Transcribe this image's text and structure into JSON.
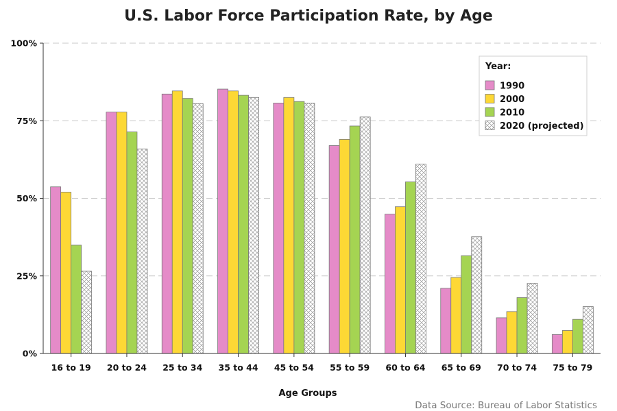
{
  "chart_data": {
    "type": "bar",
    "title": "U.S. Labor Force Participation Rate, by Age",
    "xlabel": "Age Groups",
    "ylabel": "",
    "ylim": [
      0,
      100
    ],
    "y_ticks": [
      {
        "value": 0,
        "label": "0%"
      },
      {
        "value": 25,
        "label": "25%"
      },
      {
        "value": 50,
        "label": "50%"
      },
      {
        "value": 75,
        "label": "75%"
      },
      {
        "value": 100,
        "label": "100%"
      }
    ],
    "grid": "horizontal dashed",
    "legend": {
      "title": "Year:",
      "placement": "top-right"
    },
    "source": "Data Source: Bureau of Labor Statistics",
    "categories": [
      "16 to 19",
      "20 to 24",
      "25 to 34",
      "35 to 44",
      "45 to 54",
      "55 to 59",
      "60 to 64",
      "65 to 69",
      "70 to 74",
      "75 to 79"
    ],
    "series": [
      {
        "name": "1990",
        "color": "#e58bc8",
        "pattern": "solid",
        "values": [
          53.7,
          77.8,
          83.6,
          85.2,
          80.7,
          67.0,
          44.9,
          21.0,
          11.5,
          6.1
        ]
      },
      {
        "name": "2000",
        "color": "#fdd835",
        "pattern": "solid",
        "values": [
          52.0,
          77.8,
          84.6,
          84.6,
          82.5,
          69.0,
          47.3,
          24.5,
          13.5,
          7.4
        ]
      },
      {
        "name": "2010",
        "color": "#a5d452",
        "pattern": "solid",
        "values": [
          34.9,
          71.4,
          82.2,
          83.2,
          81.2,
          73.3,
          55.3,
          31.5,
          18.0,
          11.0
        ]
      },
      {
        "name": "2020 (projected)",
        "color": "#ffffff",
        "pattern": "crosshatch",
        "values": [
          26.5,
          65.9,
          80.5,
          82.5,
          80.7,
          76.2,
          61.0,
          37.6,
          22.6,
          15.1
        ]
      }
    ]
  }
}
